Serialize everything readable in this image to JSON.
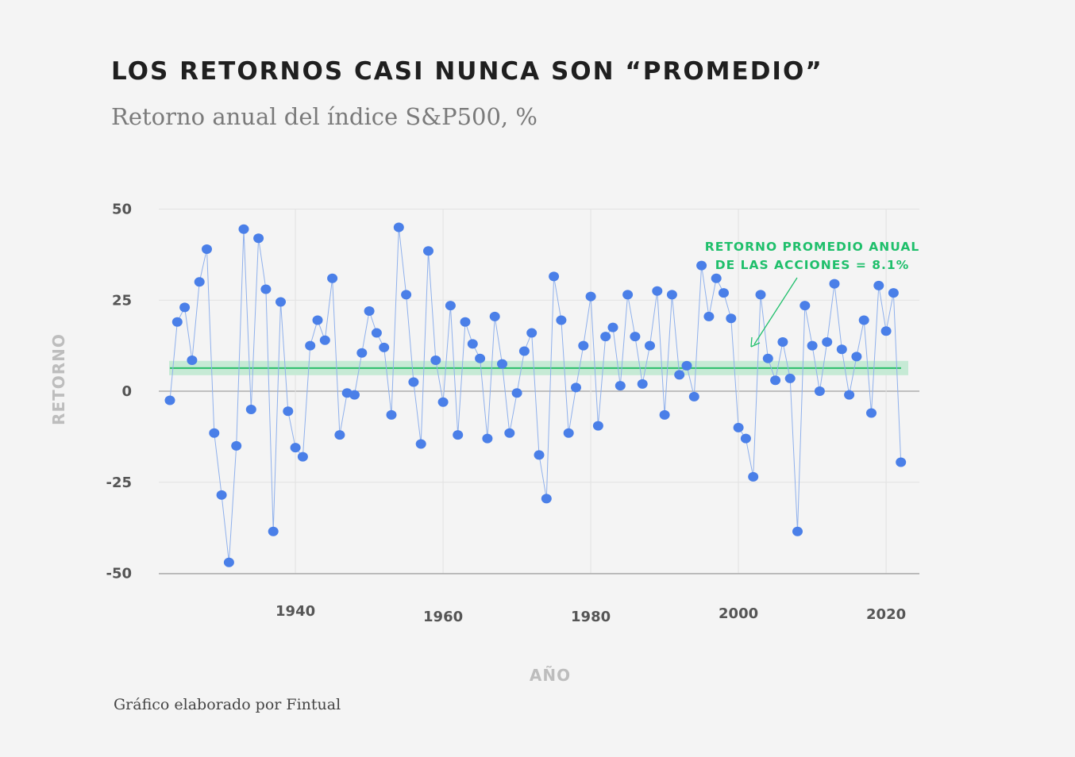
{
  "title": "LOS RETORNOS CASI NUNCA SON “PROMEDIO”",
  "subtitle": "Retorno anual del índice S&P500, %",
  "footer": "Gráfico elaborado por Fintual",
  "colors": {
    "points": "#4a7fe8",
    "line": "#8fb0ec",
    "average": "#2bbf6a",
    "band": "#c6ead5",
    "annotation": "#1fbf6b"
  },
  "chart_data": {
    "type": "line",
    "title": "LOS RETORNOS CASI NUNCA SON “PROMEDIO”",
    "subtitle": "Retorno anual del índice S&P500, %",
    "xlabel": "AÑO",
    "ylabel": "RETORNO",
    "ylim": [
      -50,
      50
    ],
    "xlim": [
      1922,
      2022
    ],
    "yticks": [
      50,
      25,
      0,
      -25,
      -50
    ],
    "xticks": [
      1940,
      1960,
      1980,
      2000,
      2020
    ],
    "average": 8.1,
    "annotation": [
      "RETORNO PROMEDIO ANUAL",
      "DE LAS ACCIONES = 8.1%"
    ],
    "series": [
      {
        "name": "Retorno anual",
        "x": [
          1923,
          1924,
          1925,
          1926,
          1927,
          1928,
          1929,
          1930,
          1931,
          1932,
          1933,
          1934,
          1935,
          1936,
          1937,
          1938,
          1939,
          1940,
          1941,
          1942,
          1943,
          1944,
          1945,
          1946,
          1947,
          1948,
          1949,
          1950,
          1951,
          1952,
          1953,
          1954,
          1955,
          1956,
          1957,
          1958,
          1959,
          1960,
          1961,
          1962,
          1963,
          1964,
          1965,
          1966,
          1967,
          1968,
          1969,
          1970,
          1971,
          1972,
          1973,
          1974,
          1975,
          1976,
          1977,
          1978,
          1979,
          1980,
          1981,
          1982,
          1983,
          1984,
          1985,
          1986,
          1987,
          1988,
          1989,
          1990,
          1991,
          1992,
          1993,
          1994,
          1995,
          1996,
          1997,
          1998,
          1999,
          2000,
          2001,
          2002,
          2003,
          2004,
          2005,
          2006,
          2007,
          2008,
          2009,
          2010,
          2011,
          2012,
          2013,
          2014,
          2015,
          2016,
          2017,
          2018,
          2019,
          2020,
          2021,
          2022
        ],
        "values": [
          -2.5,
          19.0,
          23.0,
          8.5,
          30.0,
          39.0,
          -11.5,
          -28.5,
          -47.0,
          -15.0,
          44.5,
          -5.0,
          42.0,
          28.0,
          -38.5,
          24.5,
          -5.5,
          -15.5,
          -18.0,
          12.5,
          19.5,
          14.0,
          31.0,
          -12.0,
          -0.5,
          -1.0,
          10.5,
          22.0,
          16.0,
          12.0,
          -6.5,
          45.0,
          26.5,
          2.5,
          -14.5,
          38.5,
          8.5,
          -3.0,
          23.5,
          -12.0,
          19.0,
          13.0,
          9.0,
          -13.0,
          20.5,
          7.5,
          -11.5,
          -0.5,
          11.0,
          16.0,
          -17.5,
          -29.5,
          31.5,
          19.5,
          -11.5,
          1.0,
          12.5,
          26.0,
          -9.5,
          15.0,
          17.5,
          1.5,
          26.5,
          15.0,
          2.0,
          12.5,
          27.5,
          -6.5,
          26.5,
          4.5,
          7.0,
          -1.5,
          34.5,
          20.5,
          31.0,
          27.0,
          20.0,
          -10.0,
          -13.0,
          -23.5,
          26.5,
          9.0,
          3.0,
          13.5,
          3.5,
          -38.5,
          23.5,
          12.5,
          0.0,
          13.5,
          29.5,
          11.5,
          -1.0,
          9.5,
          19.5,
          -6.0,
          29.0,
          16.5,
          27.0,
          -19.5
        ]
      }
    ]
  }
}
